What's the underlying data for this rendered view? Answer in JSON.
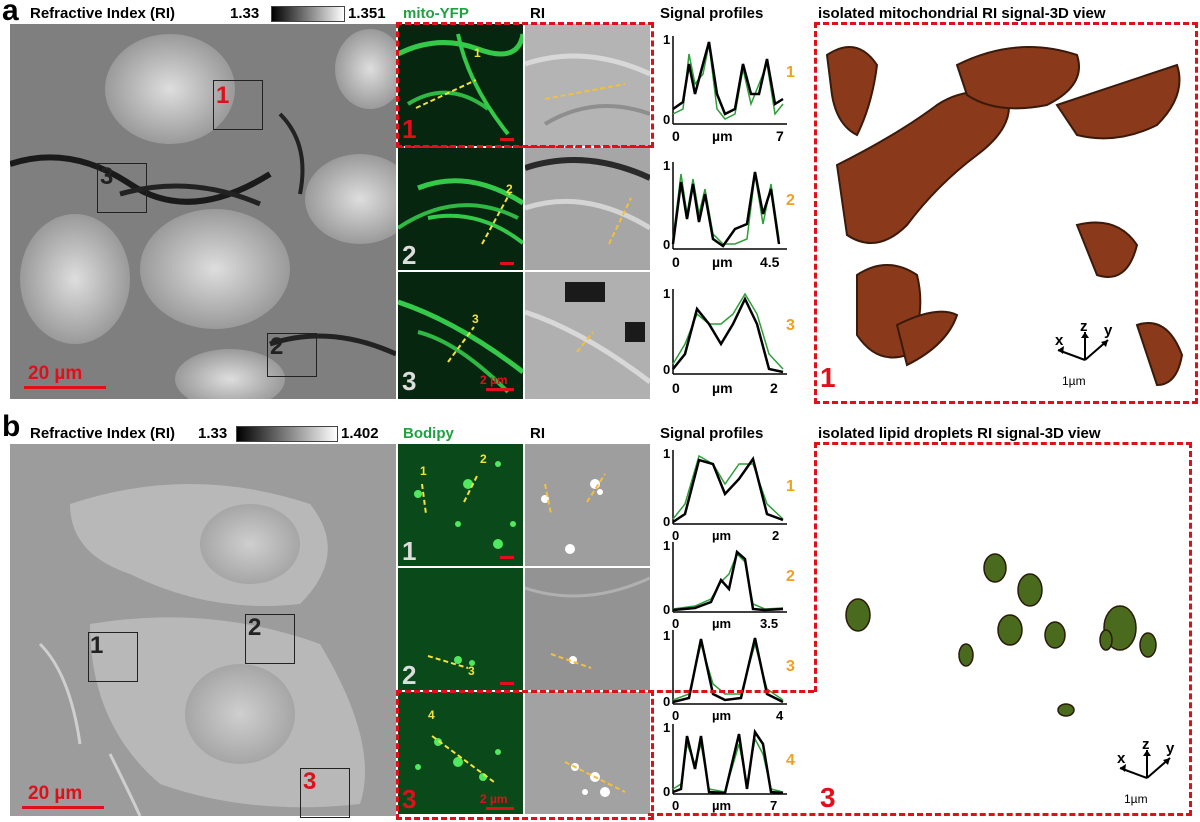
{
  "panel_a": {
    "letter": "a",
    "ri_header": "Refractive Index (RI)",
    "cbar_min": "1.33",
    "cbar_max": "1.351",
    "fluor_header": "mito-YFP",
    "ri_col_header": "RI",
    "profiles_header": "Signal profiles",
    "view3d_header": "isolated mitochondrial RI signal-3D view",
    "scale_label": "20 µm",
    "region_labels": [
      "1",
      "2",
      "3"
    ],
    "tile_labels": [
      "1",
      "2",
      "3"
    ],
    "line_labels": [
      "1",
      "2",
      "3"
    ],
    "tile_scale": "2 µm",
    "profile_labels": [
      "1",
      "2",
      "3"
    ],
    "profile_xmax": [
      "7",
      "4.5",
      "2"
    ],
    "axis_unit": "µm",
    "view3d_number": "1",
    "axes": {
      "x": "x",
      "y": "y",
      "z": "z",
      "scale": "1µm"
    }
  },
  "panel_b": {
    "letter": "b",
    "ri_header": "Refractive Index (RI)",
    "cbar_min": "1.33",
    "cbar_max": "1.402",
    "fluor_header": "Bodipy",
    "ri_col_header": "RI",
    "profiles_header": "Signal profiles",
    "view3d_header": "isolated lipid droplets RI signal-3D view",
    "scale_label": "20 µm",
    "region_labels": [
      "1",
      "2",
      "3"
    ],
    "tile_labels": [
      "1",
      "2",
      "3"
    ],
    "line_labels": [
      "1",
      "2",
      "3",
      "4"
    ],
    "tile_scale": "2 µm",
    "profile_labels": [
      "1",
      "2",
      "3",
      "4"
    ],
    "profile_xmax": [
      "2",
      "3.5",
      "4",
      "7"
    ],
    "axis_unit": "µm",
    "view3d_number": "3",
    "axes": {
      "x": "x",
      "y": "y",
      "z": "z",
      "scale": "1µm"
    }
  },
  "colors": {
    "red": "#e0101a",
    "green": "#20a040",
    "orange": "#f0a020",
    "profile_black": "#000000",
    "profile_green": "#2e9e3a"
  }
}
